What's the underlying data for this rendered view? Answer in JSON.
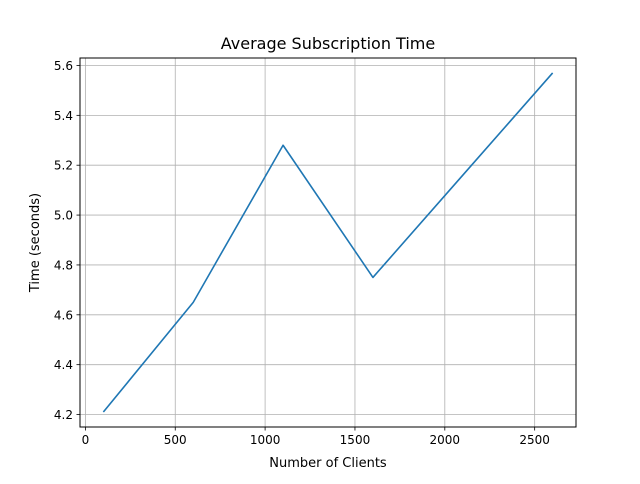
{
  "chart_data": {
    "type": "line",
    "title": "Average Subscription Time",
    "xlabel": "Number of Clients",
    "ylabel": "Time (seconds)",
    "xlim": [
      -30,
      2730
    ],
    "ylim": [
      4.15,
      5.63
    ],
    "xticks": [
      0,
      500,
      1000,
      1500,
      2000,
      2500
    ],
    "xtick_labels": [
      "0",
      "500",
      "1000",
      "1500",
      "2000",
      "2500"
    ],
    "yticks": [
      4.2,
      4.4,
      4.6,
      4.8,
      5.0,
      5.2,
      5.4,
      5.6
    ],
    "ytick_labels": [
      "4.2",
      "4.4",
      "4.6",
      "4.8",
      "5.0",
      "5.2",
      "5.4",
      "5.6"
    ],
    "grid": true,
    "series": [
      {
        "color": "#1f77b4",
        "x": [
          100,
          600,
          1100,
          1600,
          2100,
          2600
        ],
        "y": [
          4.21,
          4.65,
          5.28,
          4.75,
          5.16,
          5.57
        ]
      }
    ]
  }
}
